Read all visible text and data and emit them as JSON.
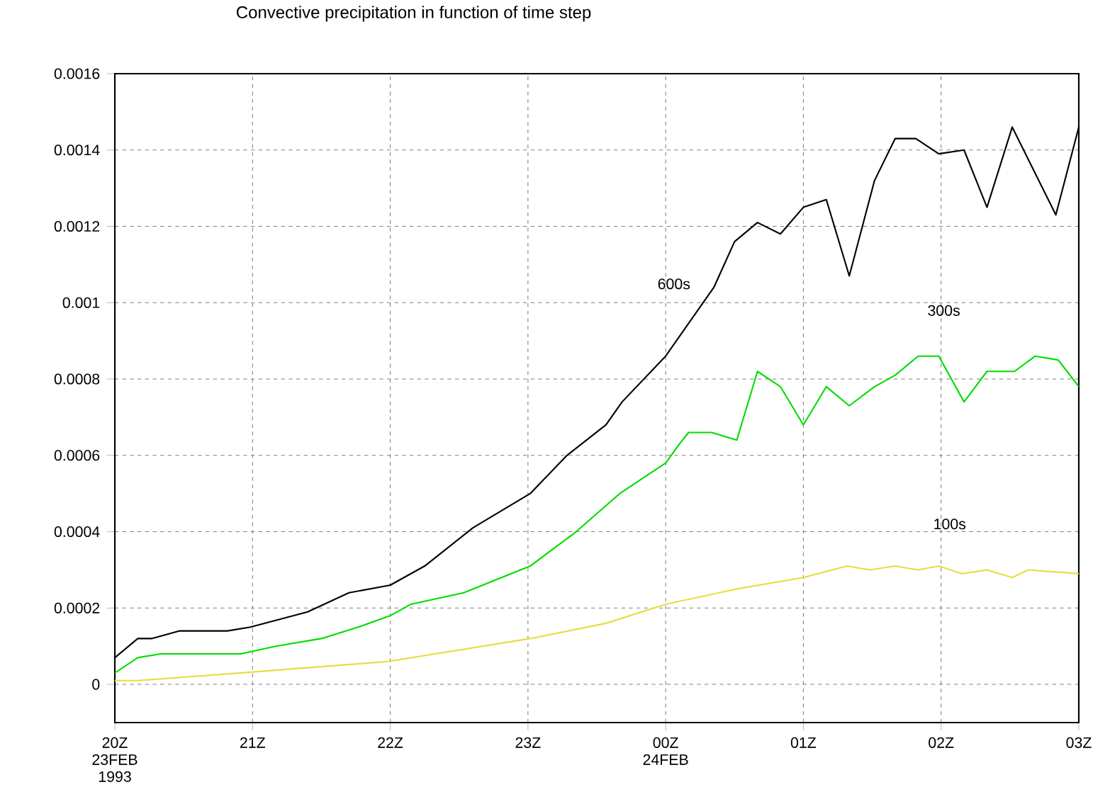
{
  "chart_data": {
    "type": "line",
    "title": "Convective precipitation in function of time step",
    "xlim": [
      "1993-02-23T20:00",
      "1993-02-24T03:00"
    ],
    "xticks": [
      {
        "value": "1993-02-23T20:00",
        "label": "20Z 23FEB 1993"
      },
      {
        "value": "1993-02-23T21:00",
        "label": "21Z"
      },
      {
        "value": "1993-02-23T22:00",
        "label": "22Z"
      },
      {
        "value": "1993-02-23T23:00",
        "label": "23Z"
      },
      {
        "value": "1993-02-24T00:00",
        "label": "00Z 24FEB"
      },
      {
        "value": "1993-02-24T01:00",
        "label": "01Z"
      },
      {
        "value": "1993-02-24T02:00",
        "label": "02Z"
      },
      {
        "value": "1993-02-24T03:00",
        "label": "03Z"
      }
    ],
    "ylim": [
      -0.0001,
      0.0016
    ],
    "yticks": [
      0,
      0.0002,
      0.0004,
      0.0006,
      0.0008,
      0.001,
      0.0012,
      0.0014,
      0.0016
    ],
    "grid": true,
    "series": [
      {
        "name": "600s",
        "color": "#000000",
        "x": [
          "1993-02-23T20:00",
          "1993-02-23T20:10",
          "1993-02-23T20:16",
          "1993-02-23T20:28",
          "1993-02-23T20:49",
          "1993-02-23T20:59",
          "1993-02-23T21:24",
          "1993-02-23T21:42",
          "1993-02-23T22:00",
          "1993-02-23T22:15",
          "1993-02-23T22:36",
          "1993-02-23T23:01",
          "1993-02-23T23:17",
          "1993-02-23T23:34",
          "1993-02-23T23:41",
          "1993-02-24T00:00",
          "1993-02-24T00:21",
          "1993-02-24T00:30",
          "1993-02-24T00:40",
          "1993-02-24T00:50",
          "1993-02-24T01:00",
          "1993-02-24T01:10",
          "1993-02-24T01:20",
          "1993-02-24T01:31",
          "1993-02-24T01:40",
          "1993-02-24T01:49",
          "1993-02-24T01:59",
          "1993-02-24T02:10",
          "1993-02-24T02:20",
          "1993-02-24T02:31",
          "1993-02-24T02:50",
          "1993-02-24T03:00"
        ],
        "values": [
          7e-05,
          0.00012,
          0.00012,
          0.00014,
          0.00014,
          0.00015,
          0.00019,
          0.00024,
          0.00026,
          0.00031,
          0.00041,
          0.0005,
          0.0006,
          0.00068,
          0.00074,
          0.00086,
          0.00104,
          0.00116,
          0.00121,
          0.00118,
          0.00125,
          0.00127,
          0.00107,
          0.00132,
          0.00143,
          0.00143,
          0.00139,
          0.0014,
          0.00125,
          0.00146,
          0.00123,
          0.00146
        ]
      },
      {
        "name": "300s",
        "color": "#00dd00",
        "x": [
          "1993-02-23T20:00",
          "1993-02-23T20:10",
          "1993-02-23T20:20",
          "1993-02-23T20:55",
          "1993-02-23T21:10",
          "1993-02-23T21:30",
          "1993-02-23T21:46",
          "1993-02-23T22:00",
          "1993-02-23T22:09",
          "1993-02-23T22:32",
          "1993-02-23T23:01",
          "1993-02-23T23:21",
          "1993-02-23T23:40",
          "1993-02-24T00:00",
          "1993-02-24T00:06",
          "1993-02-24T00:10",
          "1993-02-24T00:20",
          "1993-02-24T00:31",
          "1993-02-24T00:40",
          "1993-02-24T00:50",
          "1993-02-24T01:00",
          "1993-02-24T01:10",
          "1993-02-24T01:20",
          "1993-02-24T01:31",
          "1993-02-24T01:40",
          "1993-02-24T01:50",
          "1993-02-24T01:59",
          "1993-02-24T02:10",
          "1993-02-24T02:20",
          "1993-02-24T02:32",
          "1993-02-24T02:41",
          "1993-02-24T02:51",
          "1993-02-24T03:00"
        ],
        "values": [
          3e-05,
          7e-05,
          8e-05,
          8e-05,
          0.0001,
          0.00012,
          0.00015,
          0.00018,
          0.00021,
          0.00024,
          0.00031,
          0.0004,
          0.0005,
          0.00058,
          0.00063,
          0.00066,
          0.00066,
          0.00064,
          0.00082,
          0.00078,
          0.00068,
          0.00078,
          0.00073,
          0.00078,
          0.00081,
          0.00086,
          0.00086,
          0.00074,
          0.00082,
          0.00082,
          0.00086,
          0.00085,
          0.00078
        ]
      },
      {
        "name": "100s",
        "color": "#e8dc40",
        "x": [
          "1993-02-23T20:00",
          "1993-02-23T20:10",
          "1993-02-23T20:55",
          "1993-02-23T21:59",
          "1993-02-23T23:01",
          "1993-02-23T23:34",
          "1993-02-24T00:00",
          "1993-02-24T00:31",
          "1993-02-24T01:00",
          "1993-02-24T01:19",
          "1993-02-24T01:29",
          "1993-02-24T01:40",
          "1993-02-24T01:50",
          "1993-02-24T01:59",
          "1993-02-24T02:09",
          "1993-02-24T02:20",
          "1993-02-24T02:31",
          "1993-02-24T02:38",
          "1993-02-24T03:00"
        ],
        "values": [
          1e-05,
          1e-05,
          3e-05,
          6e-05,
          0.00012,
          0.00016,
          0.00021,
          0.00025,
          0.00028,
          0.00031,
          0.0003,
          0.00031,
          0.0003,
          0.00031,
          0.00029,
          0.0003,
          0.00028,
          0.0003,
          0.00029
        ]
      }
    ]
  }
}
